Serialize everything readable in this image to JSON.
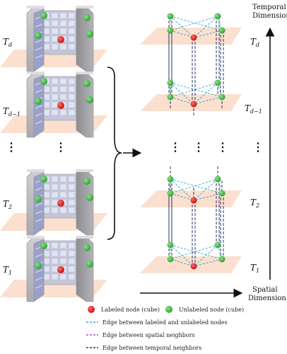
{
  "layers": [
    {
      "label": "T",
      "sub": "d"
    },
    {
      "label": "T",
      "sub": "d−1"
    },
    {
      "label": "T",
      "sub": "2"
    },
    {
      "label": "T",
      "sub": "1"
    }
  ],
  "axes": {
    "temporal": [
      "Temporal",
      "Dimension"
    ],
    "spatial": [
      "Spatial",
      "Dimension"
    ]
  },
  "legend": {
    "labeled_node": "Labeled node (cube)",
    "unlabeled_node": "Unlabeled node (cube)",
    "edge_labeled_unlabeled": "Edge between labeled and unlabeled nodes",
    "edge_spatial": "Edge between spatial neighbors",
    "edge_temporal": "Edge between temporal neighbors"
  },
  "ellipsis": "⋮",
  "colors": {
    "labeled": "#d81e1e",
    "unlabeled": "#3db33d",
    "plane": "#fbe0cf",
    "edge_labeled_unlabeled": "#3aa7d6",
    "edge_spatial": "#c04bc0",
    "edge_temporal": "#27306b"
  }
}
